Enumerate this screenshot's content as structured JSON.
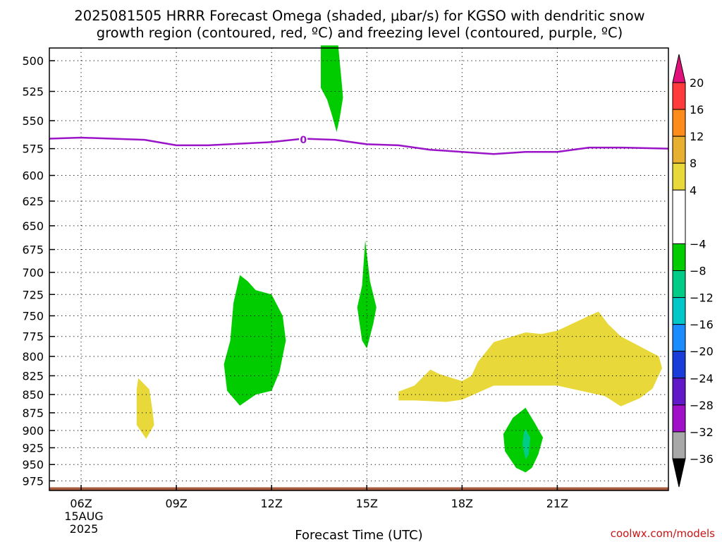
{
  "chart_data": {
    "type": "contour",
    "title_line1": "2025081505 HRRR Forecast Omega (shaded, μbar/s) for KGSO with dendritic snow",
    "title_line2": "growth region (contoured, red, ºC) and freezing level (contoured, purple, ºC)",
    "xlabel": "Forecast Time (UTC)",
    "ylabel": "",
    "credit": "coolwx.com/models",
    "x_axis": {
      "unit": "hour UTC",
      "range": [
        5,
        24.5
      ],
      "ticks": [
        {
          "x": 6,
          "label": "06Z"
        },
        {
          "x": 9,
          "label": "09Z"
        },
        {
          "x": 12,
          "label": "12Z"
        },
        {
          "x": 15,
          "label": "15Z"
        },
        {
          "x": 18,
          "label": "18Z"
        },
        {
          "x": 21,
          "label": "21Z"
        }
      ],
      "date_day": "15AUG",
      "date_year": "2025",
      "grid": "dotted"
    },
    "y_axis": {
      "unit": "hPa",
      "range": [
        490,
        990
      ],
      "inverted": true,
      "scale": "log-pressure",
      "ticks": [
        500,
        525,
        550,
        575,
        600,
        625,
        650,
        675,
        700,
        725,
        750,
        775,
        800,
        825,
        850,
        875,
        900,
        925,
        950,
        975
      ],
      "grid": "dotted"
    },
    "colorbar": {
      "labels": [
        "20",
        "16",
        "12",
        "8",
        "4",
        "−4",
        "−8",
        "−12",
        "−16",
        "−20",
        "−24",
        "−28",
        "−32",
        "−36"
      ],
      "levels": [
        20,
        16,
        12,
        8,
        4,
        -4,
        -8,
        -12,
        -16,
        -20,
        -24,
        -28,
        -32,
        -36
      ],
      "over_color": "#e0117a",
      "under_color": "#000000",
      "bands": [
        {
          "from": 20,
          "to": 16,
          "color": "#ff3b3b"
        },
        {
          "from": 16,
          "to": 12,
          "color": "#ff8c1a"
        },
        {
          "from": 12,
          "to": 8,
          "color": "#e8b030"
        },
        {
          "from": 8,
          "to": 4,
          "color": "#e8d83a"
        },
        {
          "from": 4,
          "to": -4,
          "color": "#ffffff"
        },
        {
          "from": -4,
          "to": -8,
          "color": "#00cc00"
        },
        {
          "from": -8,
          "to": -12,
          "color": "#00cc88"
        },
        {
          "from": -12,
          "to": -16,
          "color": "#00c8c8"
        },
        {
          "from": -16,
          "to": -20,
          "color": "#1a8cff"
        },
        {
          "from": -20,
          "to": -24,
          "color": "#1a3cd8"
        },
        {
          "from": -24,
          "to": -28,
          "color": "#6018c8"
        },
        {
          "from": -28,
          "to": -32,
          "color": "#a010c8"
        },
        {
          "from": -32,
          "to": -36,
          "color": "#a8a8a8"
        }
      ]
    },
    "freezing_level": {
      "color": "#9a14c8",
      "label": "0",
      "label_at": {
        "x": 13.0,
        "p": 567
      },
      "points": [
        [
          5,
          566
        ],
        [
          6,
          565
        ],
        [
          8,
          567
        ],
        [
          9,
          572
        ],
        [
          10,
          572
        ],
        [
          12,
          569
        ],
        [
          13,
          566
        ],
        [
          14,
          567
        ],
        [
          15,
          571
        ],
        [
          16,
          572
        ],
        [
          17,
          576
        ],
        [
          18,
          578
        ],
        [
          19,
          580
        ],
        [
          20,
          578
        ],
        [
          21,
          578
        ],
        [
          22,
          574
        ],
        [
          23,
          574
        ],
        [
          24.5,
          575
        ]
      ]
    },
    "shaded_regions": [
      {
        "value_band": "-4 to -8",
        "color": "#00cc00",
        "points": [
          [
            13.55,
            488
          ],
          [
            14.1,
            488
          ],
          [
            14.2,
            515
          ],
          [
            14.25,
            530
          ],
          [
            14.15,
            547
          ],
          [
            14.05,
            560
          ],
          [
            13.9,
            545
          ],
          [
            13.75,
            532
          ],
          [
            13.55,
            522
          ]
        ]
      },
      {
        "value_band": "-4 to -8",
        "color": "#00cc00",
        "points": [
          [
            11.0,
            703
          ],
          [
            11.25,
            710
          ],
          [
            11.5,
            720
          ],
          [
            12.0,
            725
          ],
          [
            12.35,
            750
          ],
          [
            12.45,
            780
          ],
          [
            12.25,
            820
          ],
          [
            12.0,
            845
          ],
          [
            11.5,
            850
          ],
          [
            11.0,
            865
          ],
          [
            10.6,
            845
          ],
          [
            10.5,
            810
          ],
          [
            10.7,
            780
          ],
          [
            10.8,
            735
          ]
        ]
      },
      {
        "value_band": "-4 to -8",
        "color": "#00cc00",
        "points": [
          [
            14.95,
            665
          ],
          [
            15.1,
            710
          ],
          [
            15.3,
            740
          ],
          [
            15.2,
            760
          ],
          [
            15.0,
            790
          ],
          [
            14.85,
            780
          ],
          [
            14.7,
            740
          ],
          [
            14.85,
            715
          ]
        ]
      },
      {
        "value_band": "-4 to -8",
        "color": "#00cc00",
        "points": [
          [
            20.0,
            868
          ],
          [
            20.3,
            890
          ],
          [
            20.55,
            910
          ],
          [
            20.4,
            935
          ],
          [
            20.2,
            955
          ],
          [
            20.0,
            962
          ],
          [
            19.7,
            955
          ],
          [
            19.35,
            930
          ],
          [
            19.3,
            905
          ],
          [
            19.6,
            882
          ]
        ]
      },
      {
        "value_band": "-8 to -12",
        "color": "#00cc88",
        "points": [
          [
            20.0,
            898
          ],
          [
            20.15,
            910
          ],
          [
            20.1,
            935
          ],
          [
            20.0,
            942
          ],
          [
            19.9,
            920
          ],
          [
            19.95,
            903
          ]
        ]
      },
      {
        "value_band": "4 to 8",
        "color": "#e8d83a",
        "points": [
          [
            7.8,
            828
          ],
          [
            8.15,
            843
          ],
          [
            8.25,
            872
          ],
          [
            8.3,
            892
          ],
          [
            8.05,
            912
          ],
          [
            7.75,
            892
          ],
          [
            7.75,
            843
          ]
        ]
      },
      {
        "value_band": "4 to 8",
        "color": "#e8d83a",
        "points": [
          [
            16.0,
            846
          ],
          [
            16.5,
            838
          ],
          [
            17.0,
            817
          ],
          [
            17.3,
            823
          ],
          [
            18.0,
            832
          ],
          [
            18.3,
            825
          ],
          [
            18.5,
            807
          ],
          [
            19.0,
            782
          ],
          [
            20.0,
            770
          ],
          [
            20.5,
            772
          ],
          [
            21.0,
            768
          ],
          [
            22.0,
            750
          ],
          [
            22.3,
            745
          ],
          [
            22.6,
            760
          ],
          [
            23.0,
            775
          ],
          [
            24.2,
            800
          ],
          [
            24.3,
            815
          ],
          [
            24.0,
            842
          ],
          [
            23.6,
            855
          ],
          [
            23.0,
            866
          ],
          [
            22.5,
            852
          ],
          [
            21.0,
            838
          ],
          [
            20.0,
            838
          ],
          [
            19.0,
            838
          ],
          [
            18.0,
            857
          ],
          [
            17.5,
            860
          ],
          [
            16.5,
            858
          ],
          [
            16.0,
            858
          ]
        ]
      }
    ],
    "surface": {
      "color": "#a85a3c",
      "pressure_top": 985,
      "pressure_bottom": 990
    }
  }
}
